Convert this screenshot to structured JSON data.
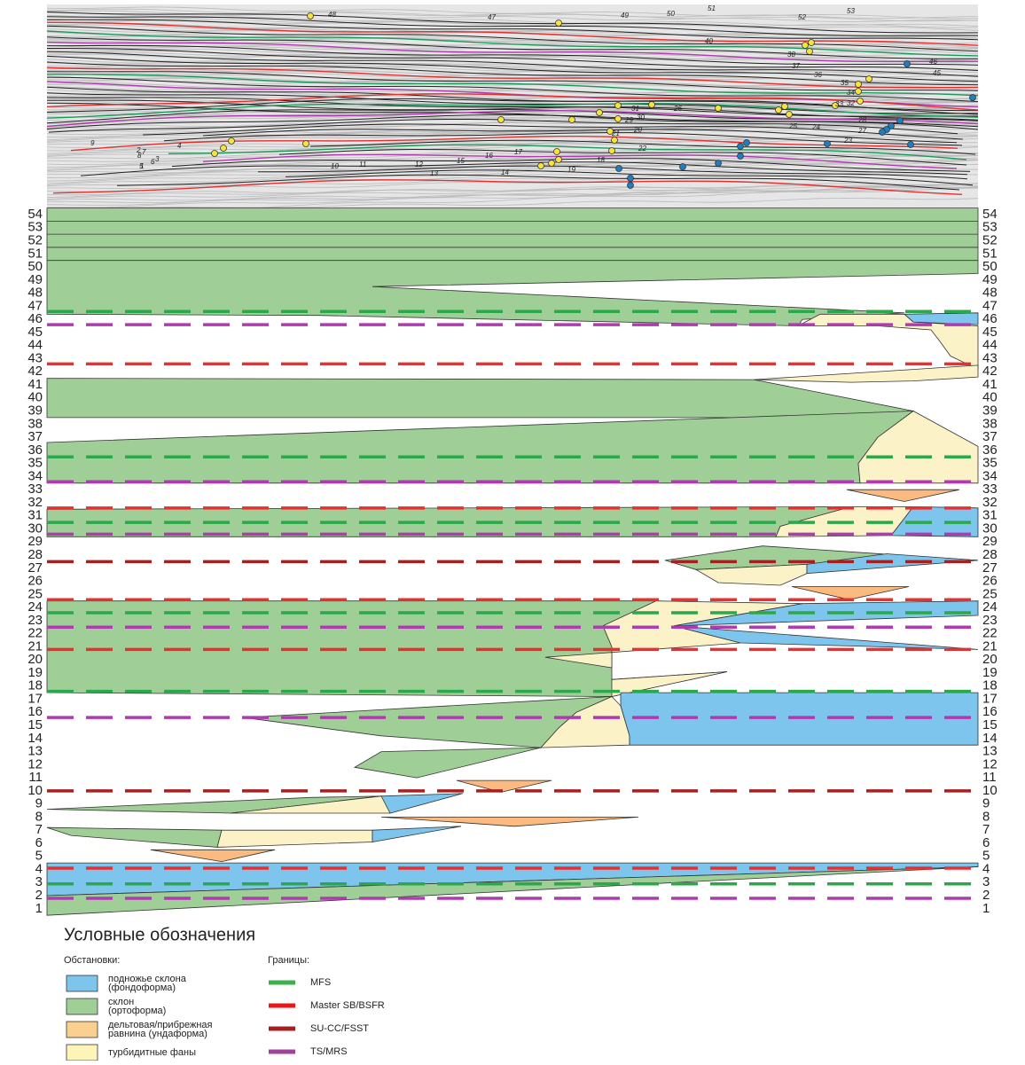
{
  "row_labels": [
    "54",
    "53",
    "52",
    "51",
    "50",
    "49",
    "48",
    "47",
    "46",
    "45",
    "44",
    "43",
    "42",
    "41",
    "40",
    "39",
    "38",
    "37",
    "36",
    "35",
    "34",
    "33",
    "32",
    "31",
    "30",
    "29",
    "28",
    "27",
    "26",
    "25",
    "24",
    "23",
    "22",
    "21",
    "20",
    "19",
    "18",
    "17",
    "16",
    "15",
    "14",
    "13",
    "12",
    "11",
    "10",
    "9",
    "8",
    "7",
    "6",
    "5",
    "4",
    "3",
    "2",
    "1"
  ],
  "seismic": {
    "labels": [
      "48",
      "47",
      "49",
      "50",
      "51",
      "52",
      "53",
      "46",
      "45",
      "40",
      "38",
      "37",
      "36",
      "35",
      "34",
      "33",
      "32",
      "31",
      "30",
      "29",
      "28",
      "27",
      "26",
      "25",
      "24",
      "23",
      "22",
      "21",
      "20",
      "19",
      "18",
      "17",
      "16",
      "15",
      "14",
      "13",
      "12",
      "11",
      "10",
      "9",
      "8",
      "7",
      "6",
      "5",
      "4",
      "3",
      "2",
      "1"
    ]
  },
  "legend": {
    "title": "Условные обозначения",
    "environments": {
      "title": "Обстановки:",
      "items": [
        {
          "lines": [
            "подножье склона",
            "(фондоформа)"
          ]
        },
        {
          "lines": [
            "склон",
            "(ортоформа)"
          ]
        },
        {
          "lines": [
            "дельтовая/прибрежная",
            "равнина (ундаформа)"
          ]
        },
        {
          "lines": [
            "турбидитные фаны"
          ]
        }
      ]
    },
    "boundaries": {
      "title": "Границы:",
      "items": [
        "MFS",
        "Master SB/BSFR",
        "SU-CC/FSST",
        "TS/MRS"
      ]
    }
  }
}
